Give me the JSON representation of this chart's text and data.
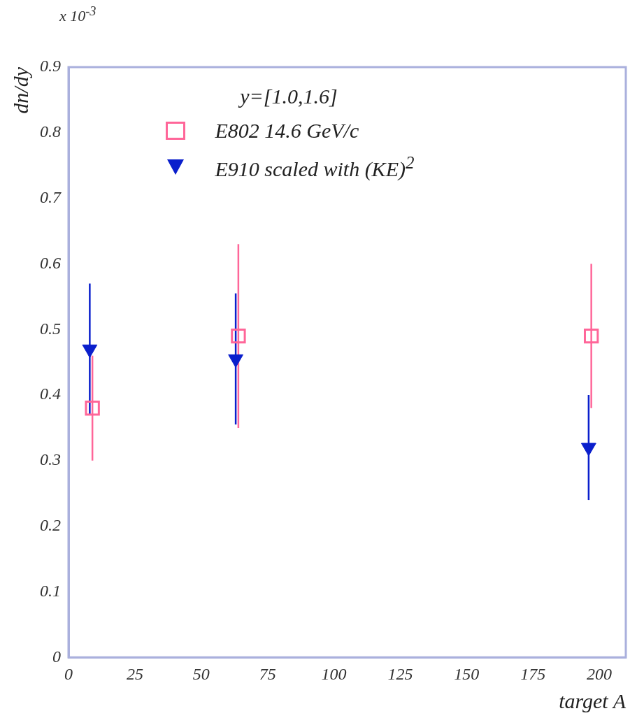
{
  "chart_data": {
    "type": "scatter",
    "xlabel": "target A",
    "ylabel": "dn/dy",
    "legend_title": "y=[1.0,1.6]",
    "legend": "top",
    "annotations": [
      "x 10$^{-3}$"
    ],
    "xlim": [
      0,
      210
    ],
    "xticks": [
      0,
      25,
      50,
      75,
      100,
      125,
      150,
      175,
      200
    ],
    "ylim": [
      0,
      0.9
    ],
    "yticks": [
      0,
      0.1,
      0.2,
      0.3,
      0.4,
      0.5,
      0.6,
      0.7,
      0.8,
      0.9
    ],
    "series": [
      {
        "name": "E802 14.6 GeV/c",
        "marker": "square",
        "color": "#ff6699",
        "x": [
          9,
          64,
          197
        ],
        "values": [
          0.38,
          0.49,
          0.49
        ],
        "errors": [
          0.08,
          0.14,
          0.11
        ]
      },
      {
        "name": "E910 scaled with (KE)$^{2}$",
        "marker": "triangle",
        "color": "#0a1fcc",
        "x": [
          8,
          63,
          196
        ],
        "values": [
          0.47,
          0.455,
          0.32
        ],
        "errors": [
          0.1,
          0.1,
          0.08
        ]
      }
    ]
  }
}
